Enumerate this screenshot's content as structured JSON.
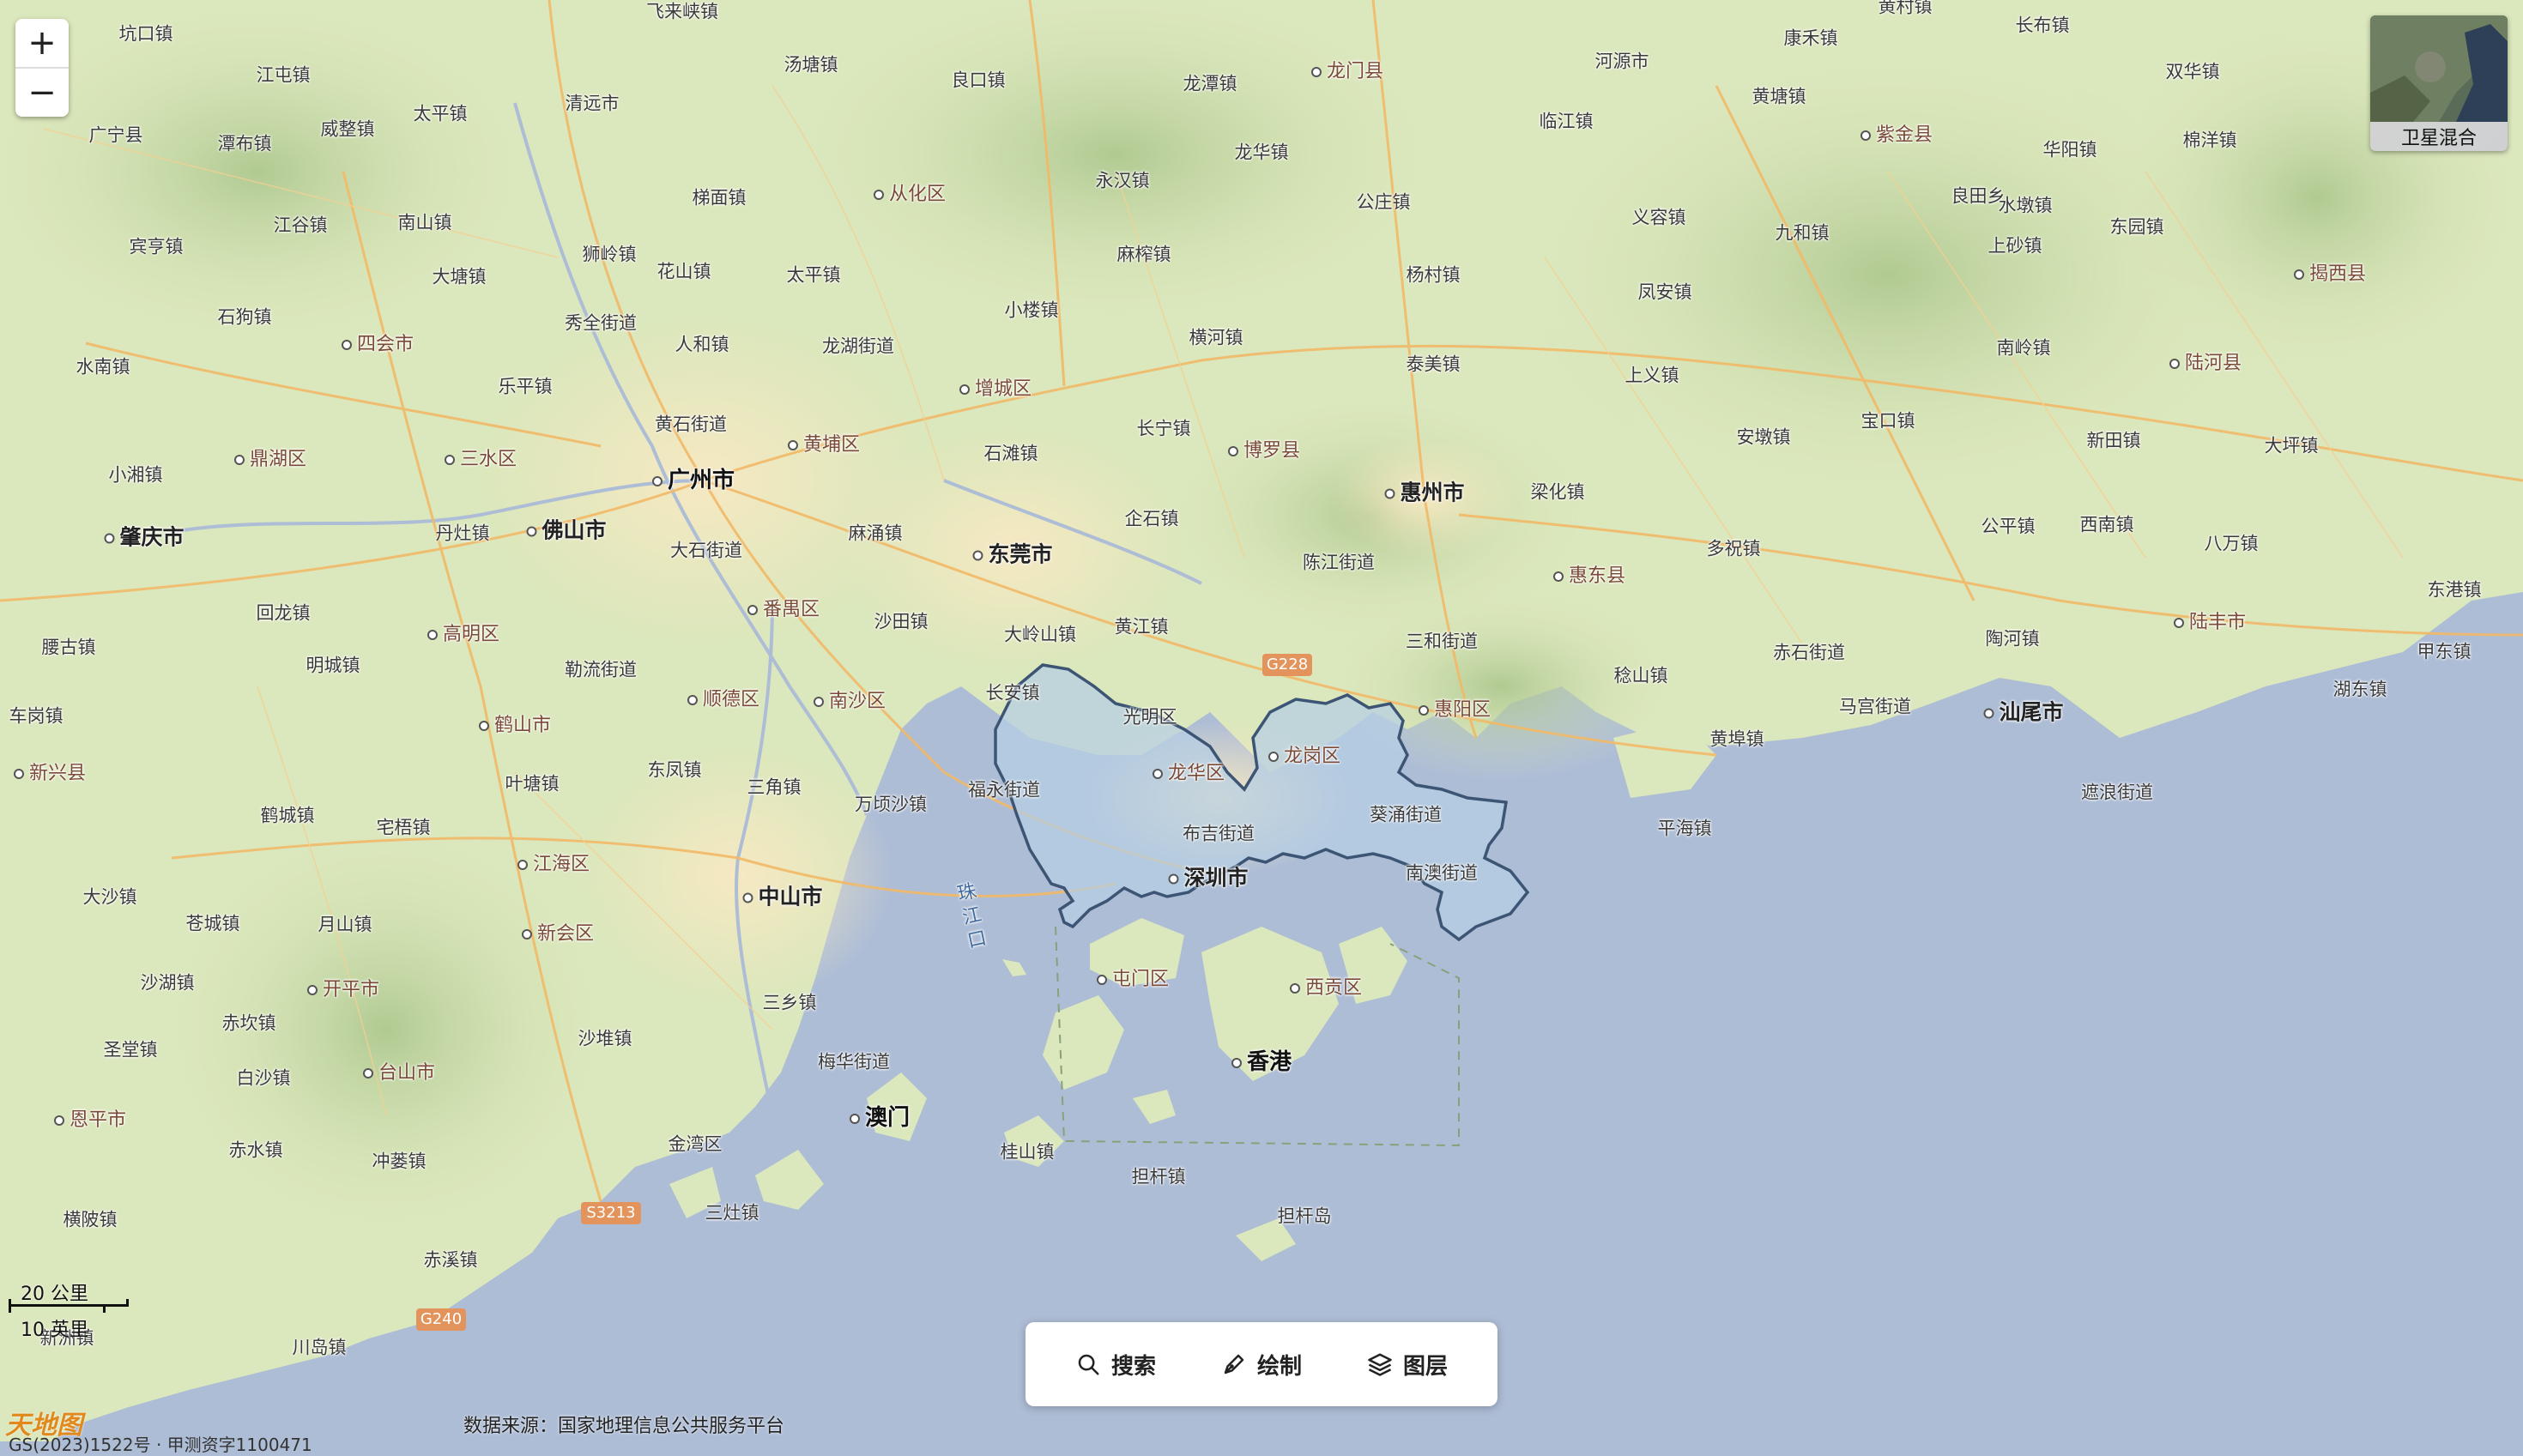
{
  "map": {
    "zoom_in": "+",
    "zoom_out": "−",
    "layer_switch_label": "卫星混合",
    "source_text": "数据来源：国家地理信息公共服务平台",
    "scale_km": "20 公里",
    "scale_mi": "10 英里",
    "copyright_text": "GS(2023)1522号 · 甲测资字1100471",
    "logo_text": "天地图",
    "colors": {
      "land": "#d9e6b9",
      "sea": "#aebdd6",
      "highlight_fill": "#b7d0e4",
      "highlight_stroke": "#3c5574",
      "road_major": "#f0b25c",
      "road_minor": "#f4cf92"
    }
  },
  "toolbar": {
    "search": {
      "label": "搜索",
      "icon": "search-icon"
    },
    "draw": {
      "label": "绘制",
      "icon": "pen-icon"
    },
    "layers": {
      "label": "图层",
      "icon": "layers-icon"
    }
  },
  "labels": {
    "towns": [
      "坑口镇",
      "飞来峡镇",
      "汤塘镇",
      "良口镇",
      "龙潭镇",
      "江屯镇",
      "太平镇",
      "清远市",
      "康禾镇",
      "黄村镇",
      "长布镇",
      "广宁县",
      "潭布镇",
      "威整镇",
      "河源市",
      "黄塘镇",
      "双华镇",
      "临江镇",
      "棉洋镇",
      "江谷镇",
      "南山镇",
      "梯面镇",
      "永汉镇",
      "龙华镇",
      "公庄镇",
      "义容镇",
      "九和镇",
      "华阳镇",
      "水墩镇",
      "良田乡",
      "宾亨镇",
      "狮岭镇",
      "麻榨镇",
      "东园镇",
      "上砂镇",
      "大塘镇",
      "花山镇",
      "太平镇",
      "杨村镇",
      "凤安镇",
      "石狗镇",
      "秀全街道",
      "小楼镇",
      "横河镇",
      "南岭镇",
      "人和镇",
      "龙湖街道",
      "泰美镇",
      "水南镇",
      "乐平镇",
      "上义镇",
      "宝口镇",
      "长宁镇",
      "安墩镇",
      "新田镇",
      "大坪镇",
      "黄石街道",
      "石滩镇",
      "小湘镇",
      "梁化镇",
      "公平镇",
      "西南镇",
      "八万镇",
      "丹灶镇",
      "企石镇",
      "麻涌镇",
      "多祝镇",
      "大石街道",
      "陈江街道",
      "回龙镇",
      "沙田镇",
      "黄江镇",
      "大岭山镇",
      "三和街道",
      "东港镇",
      "甲东镇",
      "腰古镇",
      "勒流街道",
      "明城镇",
      "长安镇",
      "稔山镇",
      "赤石街道",
      "陶河镇",
      "湖东镇",
      "车岗镇",
      "光明区",
      "马宫街道",
      "黄埠镇",
      "遮浪街道",
      "福永街道",
      "东凤镇",
      "三角镇",
      "叶塘镇",
      "宅梧镇",
      "鹤城镇",
      "万顷沙镇",
      "布吉街道",
      "葵涌街道",
      "南澳街道",
      "平海镇",
      "大沙镇",
      "苍城镇",
      "月山镇",
      "沙湖镇",
      "赤坎镇",
      "三乡镇",
      "沙堆镇",
      "圣堂镇",
      "白沙镇",
      "梅华街道",
      "赤水镇",
      "冲蒌镇",
      "桂山镇",
      "担杆镇",
      "担杆岛",
      "横陂镇",
      "三灶镇",
      "赤溪镇",
      "川岛镇",
      "新洲镇",
      "金湾区"
    ],
    "districts": [
      "从化区",
      "龙门县",
      "紫金县",
      "四会市",
      "增城区",
      "揭西县",
      "陆河县",
      "鼎湖区",
      "三水区",
      "黄埔区",
      "博罗县",
      "惠东县",
      "高明区",
      "番禺区",
      "陆丰市",
      "顺德区",
      "南沙区",
      "惠阳区",
      "鹤山市",
      "新兴县",
      "江海区",
      "新会区",
      "开平市",
      "台山市",
      "恩平市",
      "龙岗区",
      "龙华区",
      "屯门区",
      "西贡区"
    ],
    "cities": [
      "广州市",
      "佛山市",
      "肇庆市",
      "东莞市",
      "惠州市",
      "深圳市",
      "中山市",
      "汕尾市",
      "香港",
      "澳门"
    ],
    "sea": "珠江口",
    "roads": [
      "G228",
      "S3213",
      "G240"
    ]
  }
}
